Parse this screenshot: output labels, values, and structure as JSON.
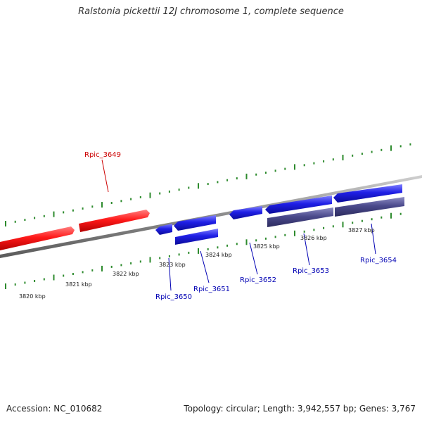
{
  "title": "Ralstonia pickettii 12J chromosome 1, complete sequence",
  "footer": {
    "accession": "Accession: NC_010682",
    "summary": "Topology: circular; Length: 3,942,557 bp; Genes: 3,767"
  },
  "colors": {
    "forward_gene": "#ff1a1a",
    "reverse_gene": "#1f1fe6",
    "rna_gene": "#4b4a8c",
    "backbone": "#808080",
    "ticks": "#2e8b2e",
    "forward_label": "#cc0000",
    "reverse_label": "#0000b3"
  },
  "scale": {
    "major_ticks_kbp": [
      {
        "value": 3820,
        "label": "3820 kbp"
      },
      {
        "value": 3821,
        "label": "3821 kbp"
      },
      {
        "value": 3822,
        "label": "3822 kbp"
      },
      {
        "value": 3823,
        "label": "3823 kbp"
      },
      {
        "value": 3824,
        "label": "3824 kbp"
      },
      {
        "value": 3825,
        "label": "3825 kbp"
      },
      {
        "value": 3826,
        "label": "3826 kbp"
      },
      {
        "value": 3827,
        "label": "3827 kbp"
      }
    ]
  },
  "genes": [
    {
      "name": "Rpic_3649",
      "strand": "+",
      "color_key": "forward_label"
    },
    {
      "name": "Rpic_3650",
      "strand": "-",
      "color_key": "reverse_label"
    },
    {
      "name": "Rpic_3651",
      "strand": "-",
      "color_key": "reverse_label"
    },
    {
      "name": "Rpic_3652",
      "strand": "-",
      "color_key": "reverse_label"
    },
    {
      "name": "Rpic_3653",
      "strand": "-",
      "color_key": "reverse_label"
    },
    {
      "name": "Rpic_3654",
      "strand": "-",
      "color_key": "reverse_label"
    }
  ]
}
